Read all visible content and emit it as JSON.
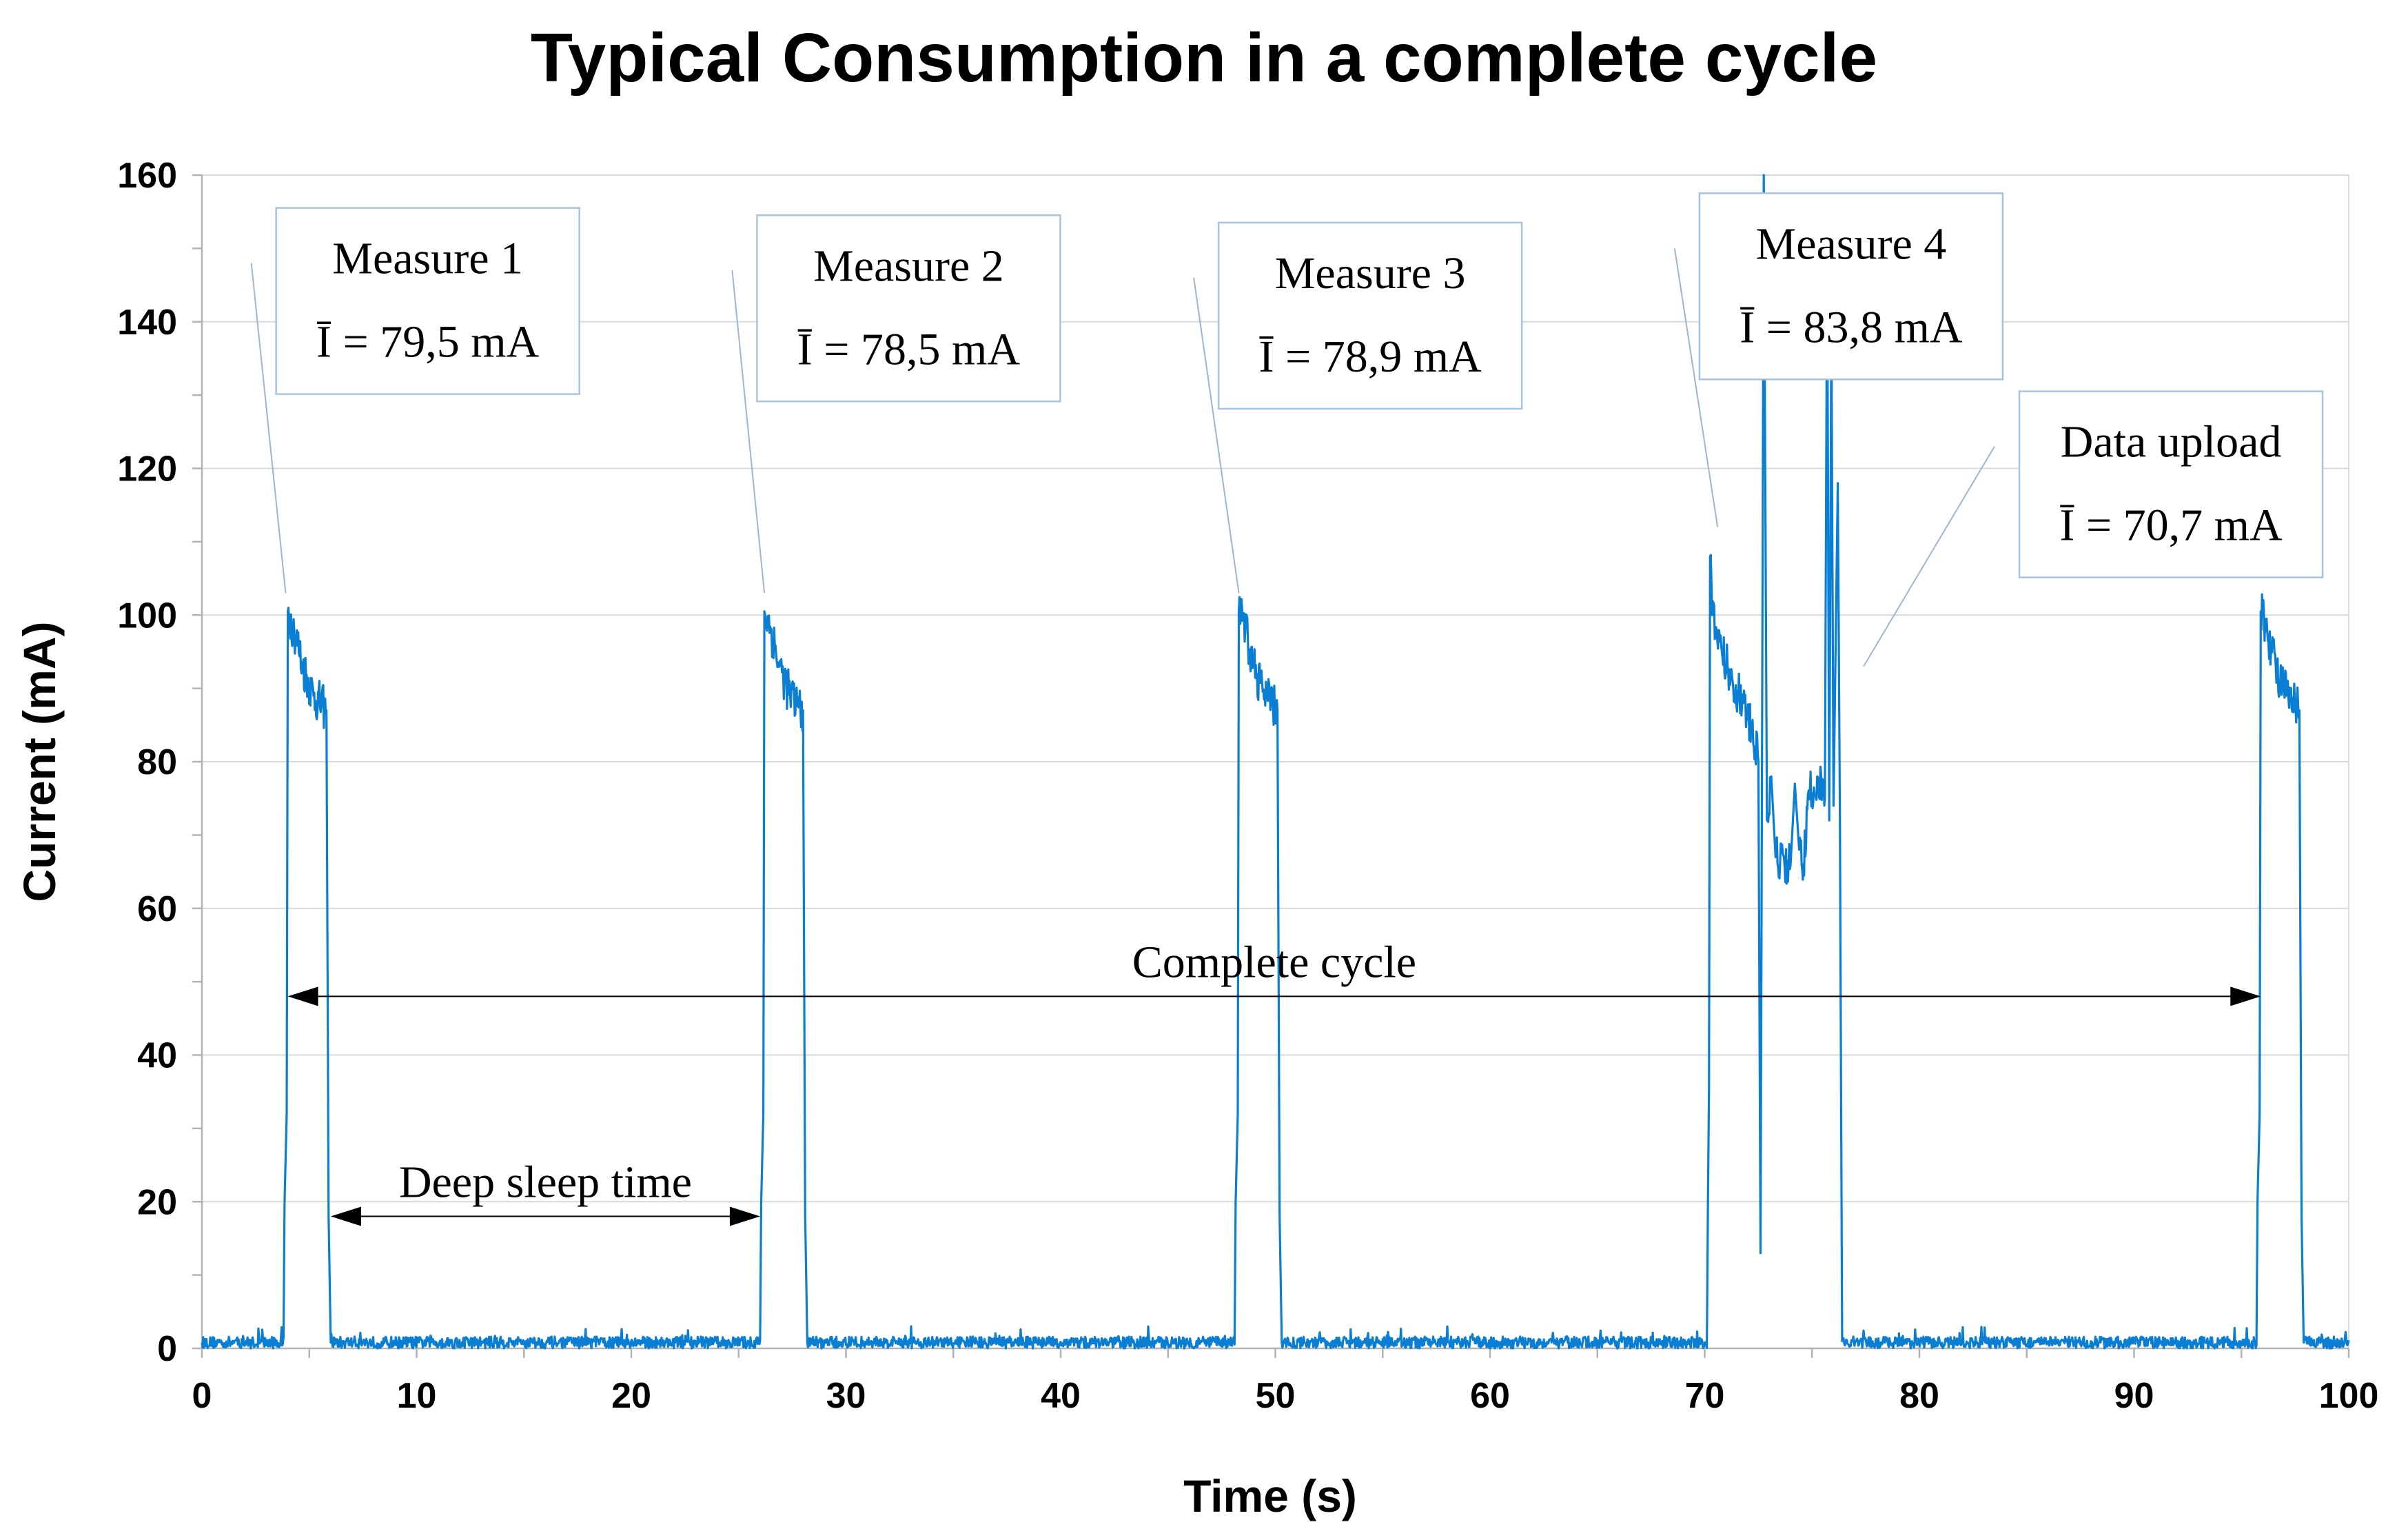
{
  "chart_data": {
    "type": "line",
    "title": "Typical Consumption in a complete cycle",
    "xlabel": "Time (s)",
    "ylabel": "Current (mA)",
    "xlim": [
      0,
      100
    ],
    "ylim": [
      0,
      160
    ],
    "x_ticks": [
      0,
      10,
      20,
      30,
      40,
      50,
      60,
      70,
      80,
      90,
      100
    ],
    "y_ticks": [
      0,
      20,
      40,
      60,
      80,
      100,
      120,
      140,
      160
    ],
    "grid": true,
    "series_color": "#0a7ed2",
    "baseline_current": 0.8,
    "series": [
      {
        "name": "Current",
        "points": [
          [
            0,
            0.8
          ],
          [
            3.8,
            0.8
          ],
          [
            3.85,
            20
          ],
          [
            3.95,
            32
          ],
          [
            4.0,
            100.5
          ],
          [
            4.3,
            98
          ],
          [
            4.7,
            93
          ],
          [
            5.2,
            89
          ],
          [
            5.8,
            87
          ],
          [
            5.9,
            18
          ],
          [
            6.0,
            0.8
          ],
          [
            26.0,
            0.8
          ],
          [
            26.05,
            20
          ],
          [
            26.15,
            32
          ],
          [
            26.2,
            100.5
          ],
          [
            26.5,
            98
          ],
          [
            26.9,
            93
          ],
          [
            27.4,
            89
          ],
          [
            28.0,
            87
          ],
          [
            28.1,
            18
          ],
          [
            28.2,
            0.8
          ],
          [
            48.1,
            0.8
          ],
          [
            48.15,
            20
          ],
          [
            48.25,
            32
          ],
          [
            48.3,
            100.5
          ],
          [
            48.6,
            98
          ],
          [
            49.0,
            93
          ],
          [
            49.5,
            89
          ],
          [
            50.1,
            87
          ],
          [
            50.2,
            18
          ],
          [
            50.3,
            0.8
          ],
          [
            70.1,
            0.8
          ],
          [
            70.15,
            20
          ],
          [
            70.2,
            35
          ],
          [
            70.25,
            108
          ],
          [
            70.35,
            100
          ],
          [
            70.8,
            95
          ],
          [
            71.3,
            91
          ],
          [
            71.8,
            88
          ],
          [
            72.2,
            84
          ],
          [
            72.5,
            80
          ],
          [
            72.6,
            13
          ],
          [
            72.75,
            160
          ],
          [
            72.9,
            72
          ],
          [
            73.1,
            78
          ],
          [
            73.3,
            67
          ],
          [
            74.0,
            66
          ],
          [
            74.2,
            77
          ],
          [
            74.4,
            68
          ],
          [
            74.6,
            66
          ],
          [
            74.9,
            76
          ],
          [
            75.3,
            77
          ],
          [
            75.6,
            75
          ],
          [
            75.7,
            150
          ],
          [
            75.8,
            72
          ],
          [
            75.9,
            140
          ],
          [
            76.0,
            74
          ],
          [
            76.2,
            118
          ],
          [
            76.3,
            72
          ],
          [
            76.4,
            1
          ],
          [
            76.5,
            0.8
          ],
          [
            95.7,
            0.8
          ],
          [
            95.75,
            20
          ],
          [
            95.85,
            32
          ],
          [
            95.9,
            100.5
          ],
          [
            96.2,
            98
          ],
          [
            96.6,
            93
          ],
          [
            97.1,
            89
          ],
          [
            97.7,
            87
          ],
          [
            97.8,
            18
          ],
          [
            97.9,
            0.8
          ],
          [
            100,
            0.8
          ]
        ]
      }
    ],
    "annotations": [
      {
        "name": "measure-1",
        "label": "Measure 1",
        "avg": "Ī = 79,5 mA",
        "target": [
          3.9,
          103
        ],
        "leader_from": [
          2.3,
          148
        ]
      },
      {
        "name": "measure-2",
        "label": "Measure 2",
        "avg": "Ī = 78,5 mA",
        "target": [
          26.2,
          103
        ],
        "leader_from": [
          24.7,
          147
        ]
      },
      {
        "name": "measure-3",
        "label": "Measure 3",
        "avg": "Ī = 78,9 mA",
        "target": [
          48.3,
          103
        ],
        "leader_from": [
          46.2,
          146
        ]
      },
      {
        "name": "measure-4",
        "label": "Measure 4",
        "avg": "Ī = 83,8 mA",
        "target": [
          70.6,
          112
        ],
        "leader_from": [
          68.6,
          150
        ]
      },
      {
        "name": "data-upload",
        "label": "Data upload",
        "avg": "Ī = 70,7 mA",
        "target": [
          77.4,
          93
        ],
        "leader_from": [
          83.5,
          123
        ]
      }
    ],
    "spans": [
      {
        "name": "complete-cycle",
        "label": "Complete cycle",
        "from": 4.0,
        "to": 95.9,
        "y": 48
      },
      {
        "name": "deep-sleep-time",
        "label": "Deep sleep time",
        "from": 6.0,
        "to": 26.0,
        "y": 18
      }
    ]
  }
}
